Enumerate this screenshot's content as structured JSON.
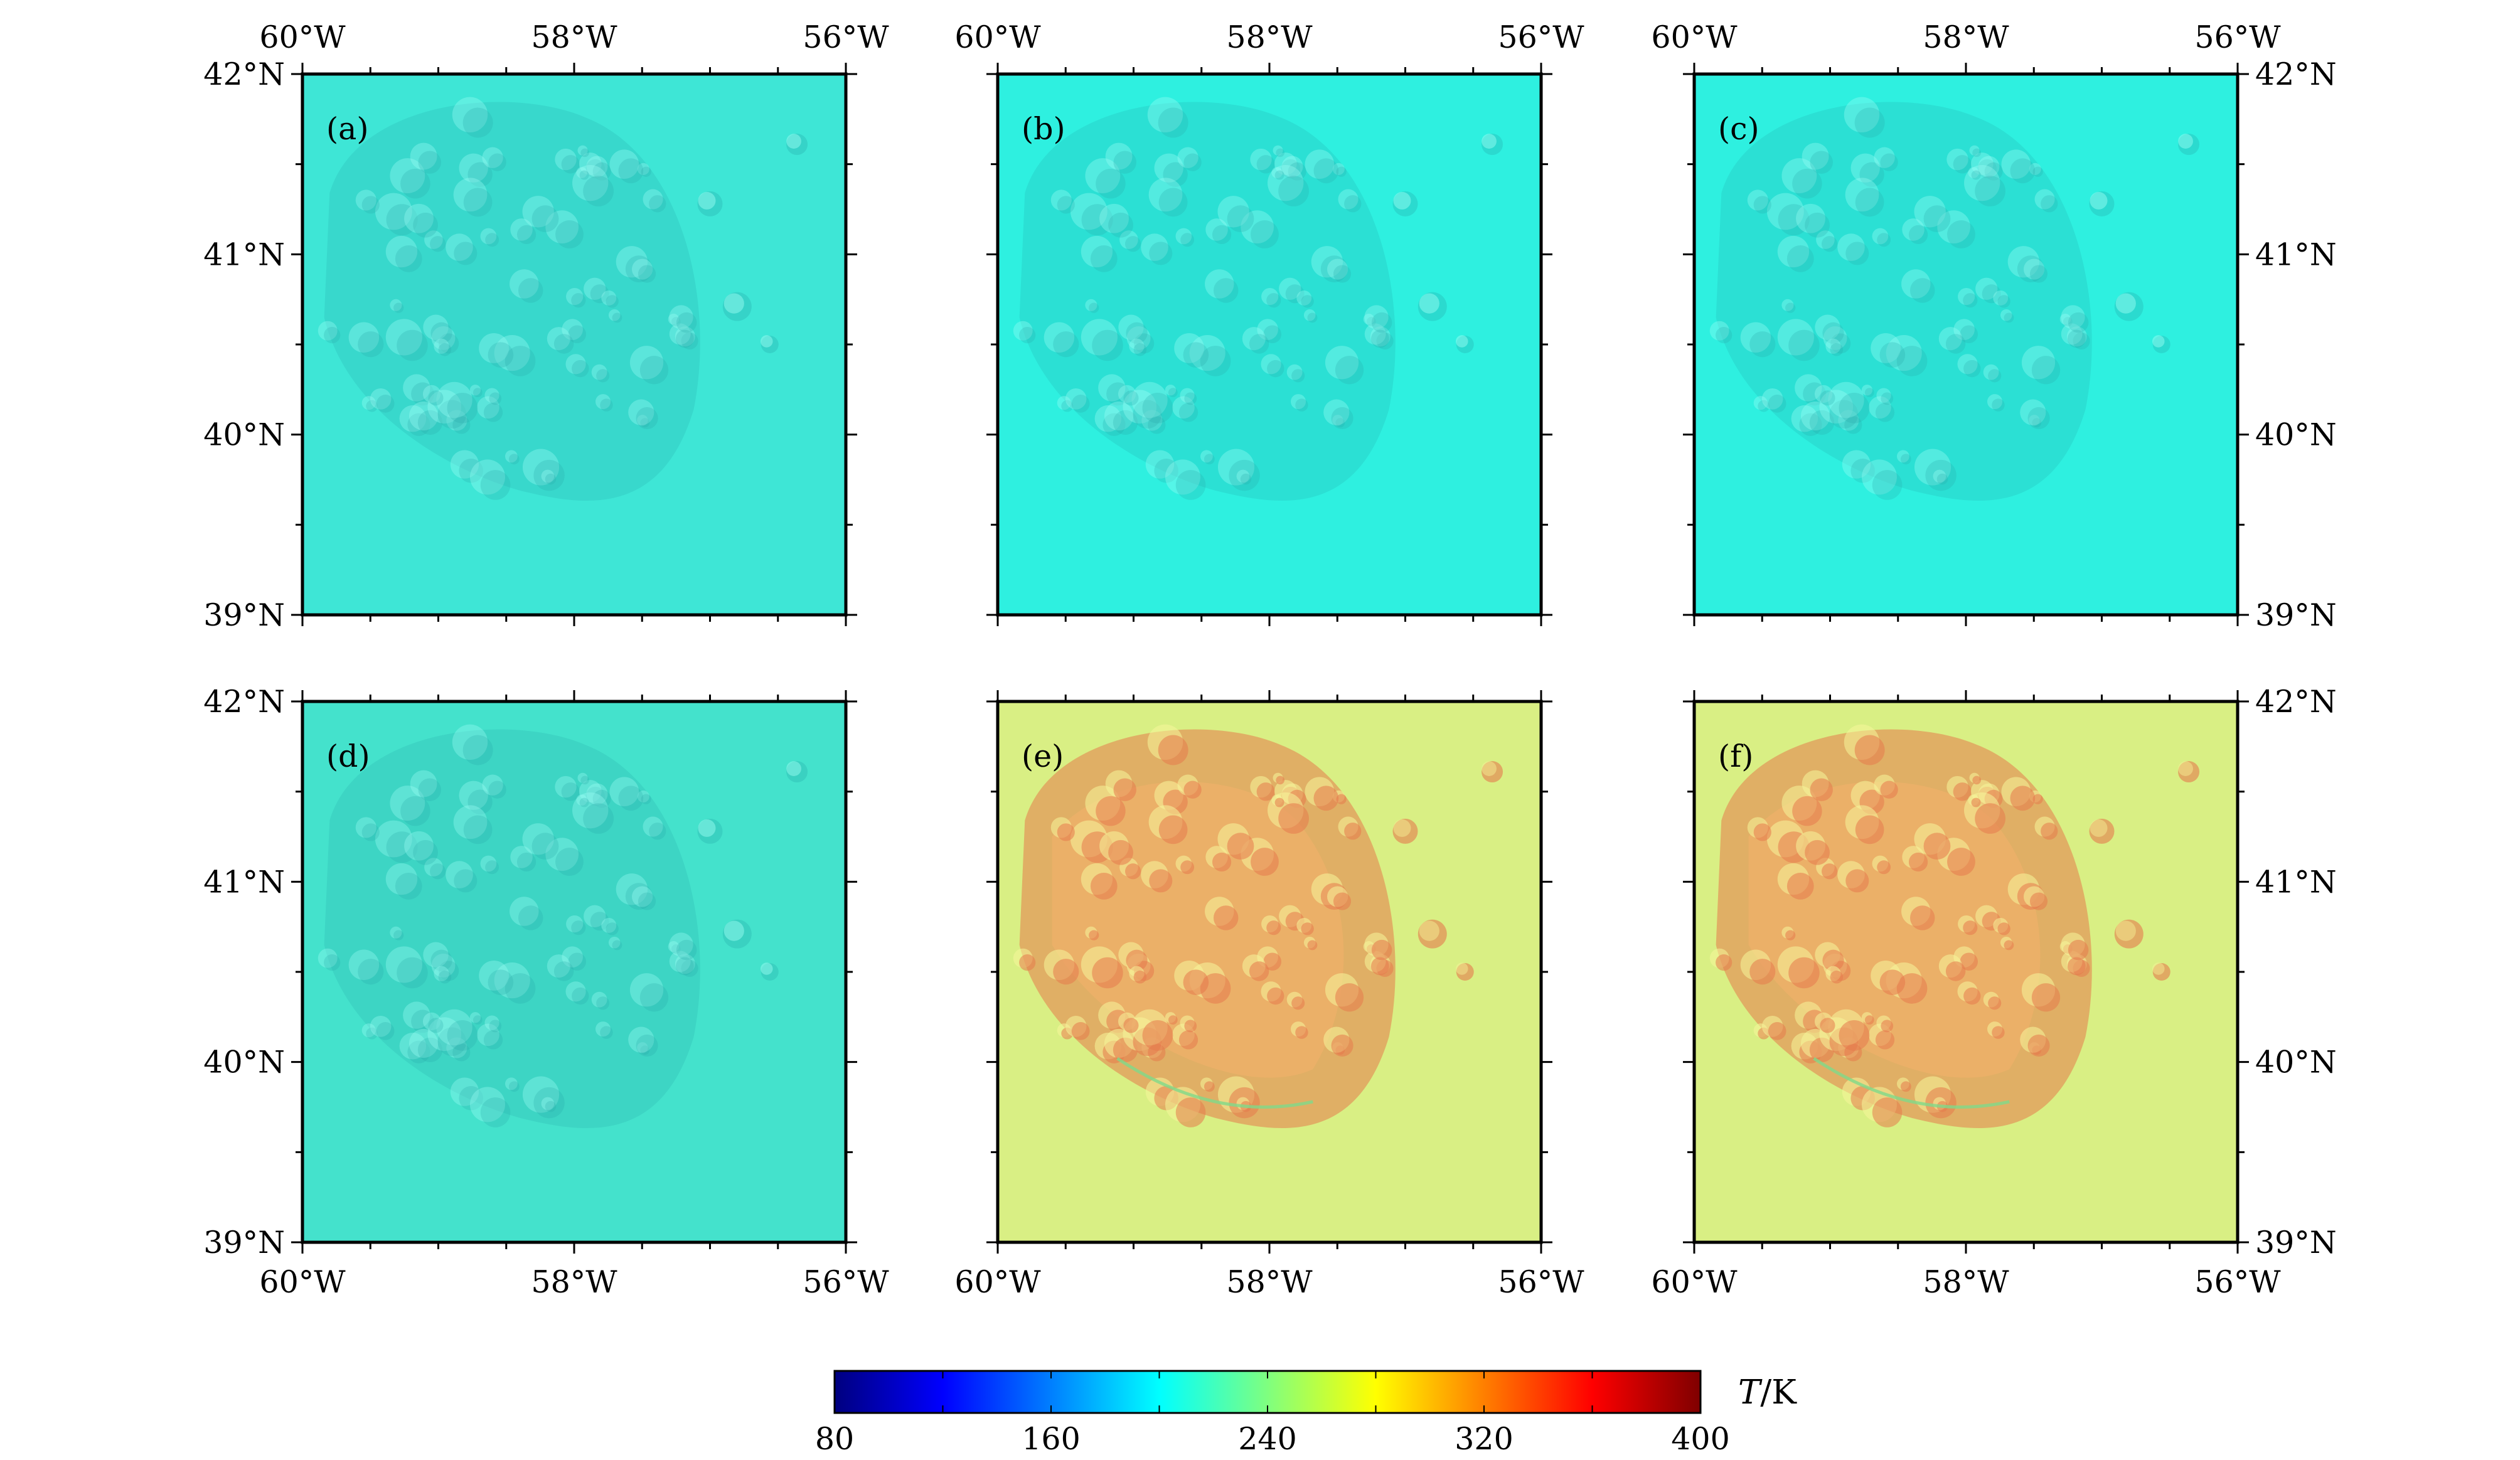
{
  "figure": {
    "panels": [
      {
        "id": "a",
        "label": "(a)",
        "base_color": "#3ee6d6",
        "scheme": "cold"
      },
      {
        "id": "b",
        "label": "(b)",
        "base_color": "#2ef0e0",
        "scheme": "cold"
      },
      {
        "id": "c",
        "label": "(c)",
        "base_color": "#2ef0e0",
        "scheme": "cold"
      },
      {
        "id": "d",
        "label": "(d)",
        "base_color": "#44e2cc",
        "scheme": "cold"
      },
      {
        "id": "e",
        "label": "(e)",
        "base_color": "#d9ef84",
        "scheme": "warm"
      },
      {
        "id": "f",
        "label": "(f)",
        "base_color": "#d9ef84",
        "scheme": "warm"
      }
    ],
    "lon_labels": [
      "60°W",
      "58°W",
      "56°W"
    ],
    "lat_labels": [
      "42°N",
      "41°N",
      "40°N",
      "39°N"
    ],
    "colorbar": {
      "title_var": "T",
      "title_unit": "/K",
      "min": 80,
      "max": 400,
      "tick_labels": [
        "80",
        "160",
        "240",
        "320",
        "400"
      ],
      "colormap": "jet",
      "colors": [
        "#00007f",
        "#0000ff",
        "#007fff",
        "#00ffff",
        "#7fff7f",
        "#ffff00",
        "#ff7f00",
        "#ff0000",
        "#7f0000"
      ]
    },
    "colors": {
      "cold_dark": "#26a8a8",
      "cold_light": "#9ffff5",
      "warm_dark": "#e57a4c",
      "warm_mid": "#f2b16a",
      "warm_light": "#f6f59a",
      "warm_green": "#7fd98a"
    }
  }
}
